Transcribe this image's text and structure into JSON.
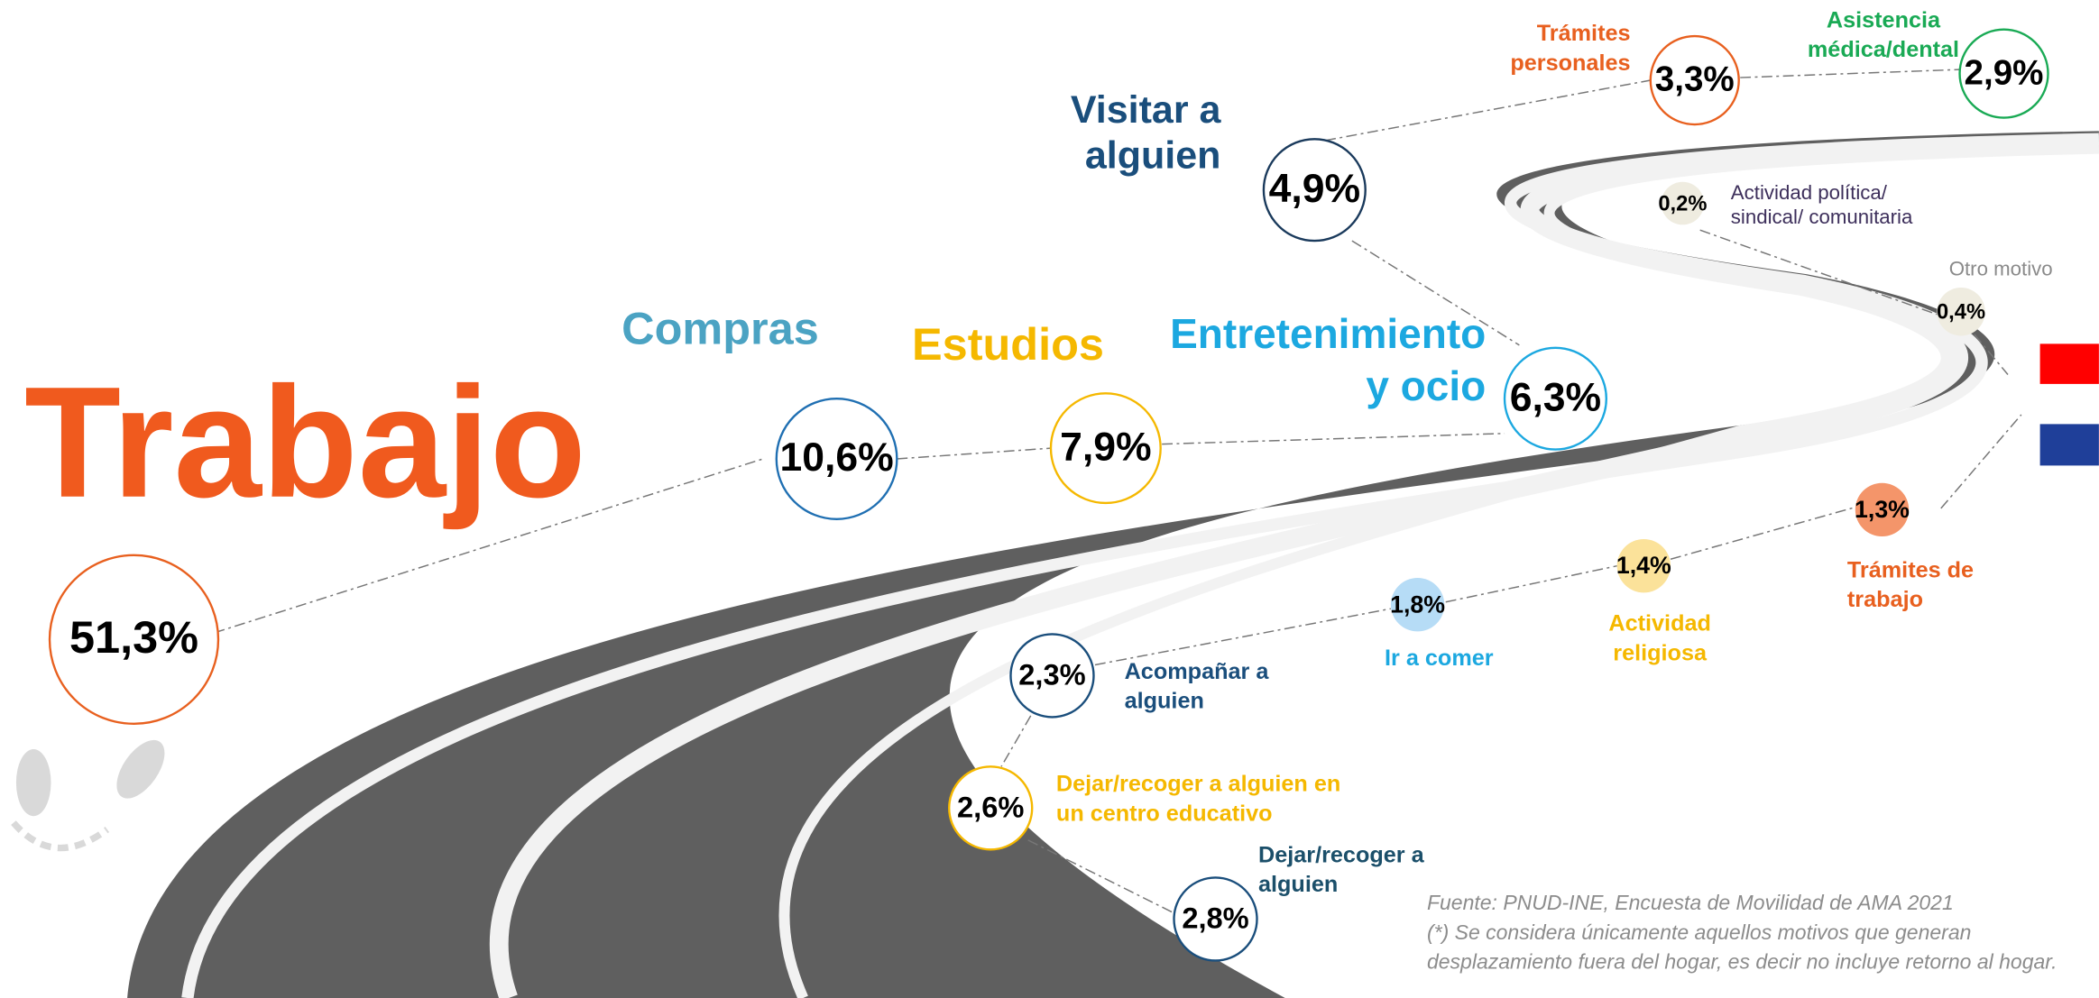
{
  "items": [
    {
      "label": [
        "Trabajo"
      ],
      "value": "51,3%"
    },
    {
      "label": [
        "Compras"
      ],
      "value": "10,6%"
    },
    {
      "label": [
        "Estudios"
      ],
      "value": "7,9%"
    },
    {
      "label": [
        "Entretenimiento",
        "y ocio"
      ],
      "value": "6,3%"
    },
    {
      "label": [
        "Visitar a",
        "alguien"
      ],
      "value": "4,9%"
    },
    {
      "label": [
        "Trámites",
        "personales"
      ],
      "value": "3,3%"
    },
    {
      "label": [
        "Asistencia",
        "médica/dental"
      ],
      "value": "2,9%"
    },
    {
      "label": [
        "Actividad política/",
        "sindical/ comunitaria"
      ],
      "value": "0,2%"
    },
    {
      "label": [
        "Otro motivo"
      ],
      "value": "0,4%"
    },
    {
      "label": [
        "Trámites de",
        "trabajo"
      ],
      "value": "1,3%"
    },
    {
      "label": [
        "Actividad",
        "religiosa"
      ],
      "value": "1,4%"
    },
    {
      "label": [
        "Ir a comer"
      ],
      "value": "1,8%"
    },
    {
      "label": [
        "Acompañar a",
        "alguien"
      ],
      "value": "2,3%"
    },
    {
      "label": [
        "Dejar/recoger a alguien en",
        "un centro educativo"
      ],
      "value": "2,6%"
    },
    {
      "label": [
        "Dejar/recoger a",
        "alguien"
      ],
      "value": "2,8%"
    }
  ],
  "footer": [
    "Fuente: PNUD-INE, Encuesta de Movilidad de AMA 2021",
    "(*) Se considera únicamente aquellos motivos que generan",
    "desplazamiento fuera del hogar, es decir no incluye retorno al hogar."
  ]
}
